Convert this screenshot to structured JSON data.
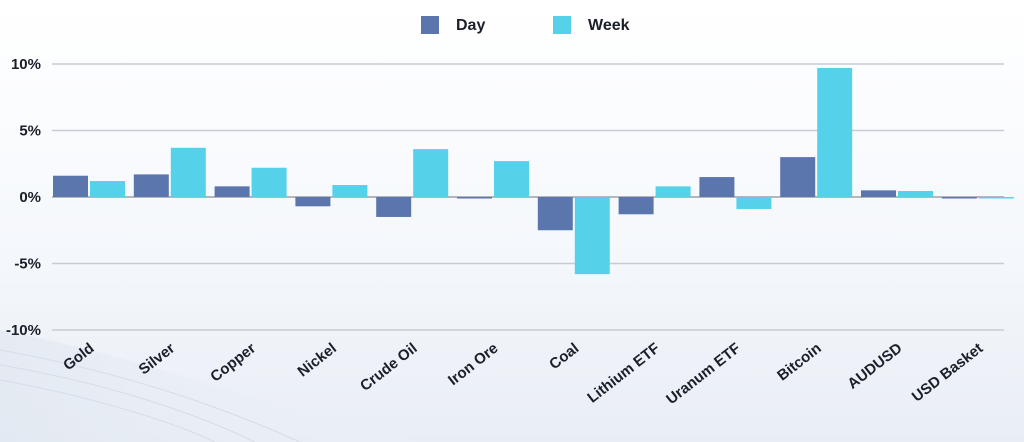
{
  "chart_data": {
    "type": "bar",
    "categories": [
      "Gold",
      "Silver",
      "Copper",
      "Nickel",
      "Crude Oil",
      "Iron Ore",
      "Coal",
      "Lithium ETF",
      "Uranum ETF",
      "Bitcoin",
      "AUDUSD",
      "USD Basket"
    ],
    "series": [
      {
        "name": "Day",
        "color": "#5b75ad",
        "values": [
          1.6,
          1.7,
          0.8,
          -0.7,
          -1.5,
          -0.1,
          -2.5,
          -1.3,
          1.5,
          3.0,
          0.5,
          0.0
        ]
      },
      {
        "name": "Week",
        "color": "#55d2ea",
        "values": [
          1.2,
          3.7,
          2.2,
          0.9,
          3.6,
          2.7,
          -5.8,
          0.8,
          -0.9,
          9.7,
          0.45,
          -0.1
        ]
      }
    ],
    "ylim": [
      -10,
      10
    ],
    "yticks": [
      10,
      5,
      0,
      -5,
      -10
    ],
    "ytick_labels": [
      "10%",
      "5%",
      "0%",
      "-5%",
      "-10%"
    ],
    "grid": true,
    "legend_position": "top-center",
    "title": "",
    "xlabel": "",
    "ylabel": ""
  }
}
